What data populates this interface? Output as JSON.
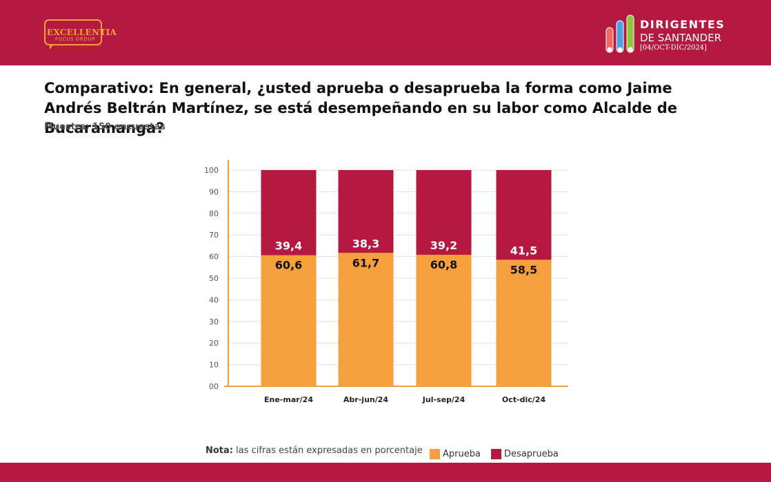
{
  "header": {
    "logo_left": {
      "name": "EXCELLENTIA",
      "tagline": "FOCUS GROUP"
    },
    "logo_right": {
      "line1": "DIRIGENTES",
      "line2": "DE SANTANDER",
      "line3": "[04/OCT-DIC/2024]"
    }
  },
  "title": "Comparativo: En general, ¿usted aprueba o desaprueba la forma como Jaime Andrés Beltrán Martínez, se está desempeñando en su labor como Alcalde de Bucaramanga?",
  "subtitle": "Muestra: 150 encuestas",
  "note": {
    "label": "Nota:",
    "text": "las cifras están expresadas en porcentaje"
  },
  "colors": {
    "band": "#b5193f",
    "aprueba": "#f5a03c",
    "desaprueba": "#b5193f",
    "axis": "#f5a03c"
  },
  "chart_data": {
    "type": "bar",
    "stacked": true,
    "categories": [
      "Ene-mar/24",
      "Abr-jun/24",
      "Jul-sep/24",
      "Oct-dic/24"
    ],
    "series": [
      {
        "name": "Aprueba",
        "values": [
          60.6,
          61.7,
          60.8,
          58.5
        ],
        "labels": [
          "60,6",
          "61,7",
          "60,8",
          "58,5"
        ]
      },
      {
        "name": "Desaprueba",
        "values": [
          39.4,
          38.3,
          39.2,
          41.5
        ],
        "labels": [
          "39,4",
          "38,3",
          "39,2",
          "41,5"
        ]
      }
    ],
    "yticks": [
      "00",
      "10",
      "20",
      "30",
      "40",
      "50",
      "60",
      "70",
      "80",
      "90",
      "100"
    ],
    "ylim": [
      0,
      100
    ],
    "grid": true,
    "legend": "bottom"
  }
}
